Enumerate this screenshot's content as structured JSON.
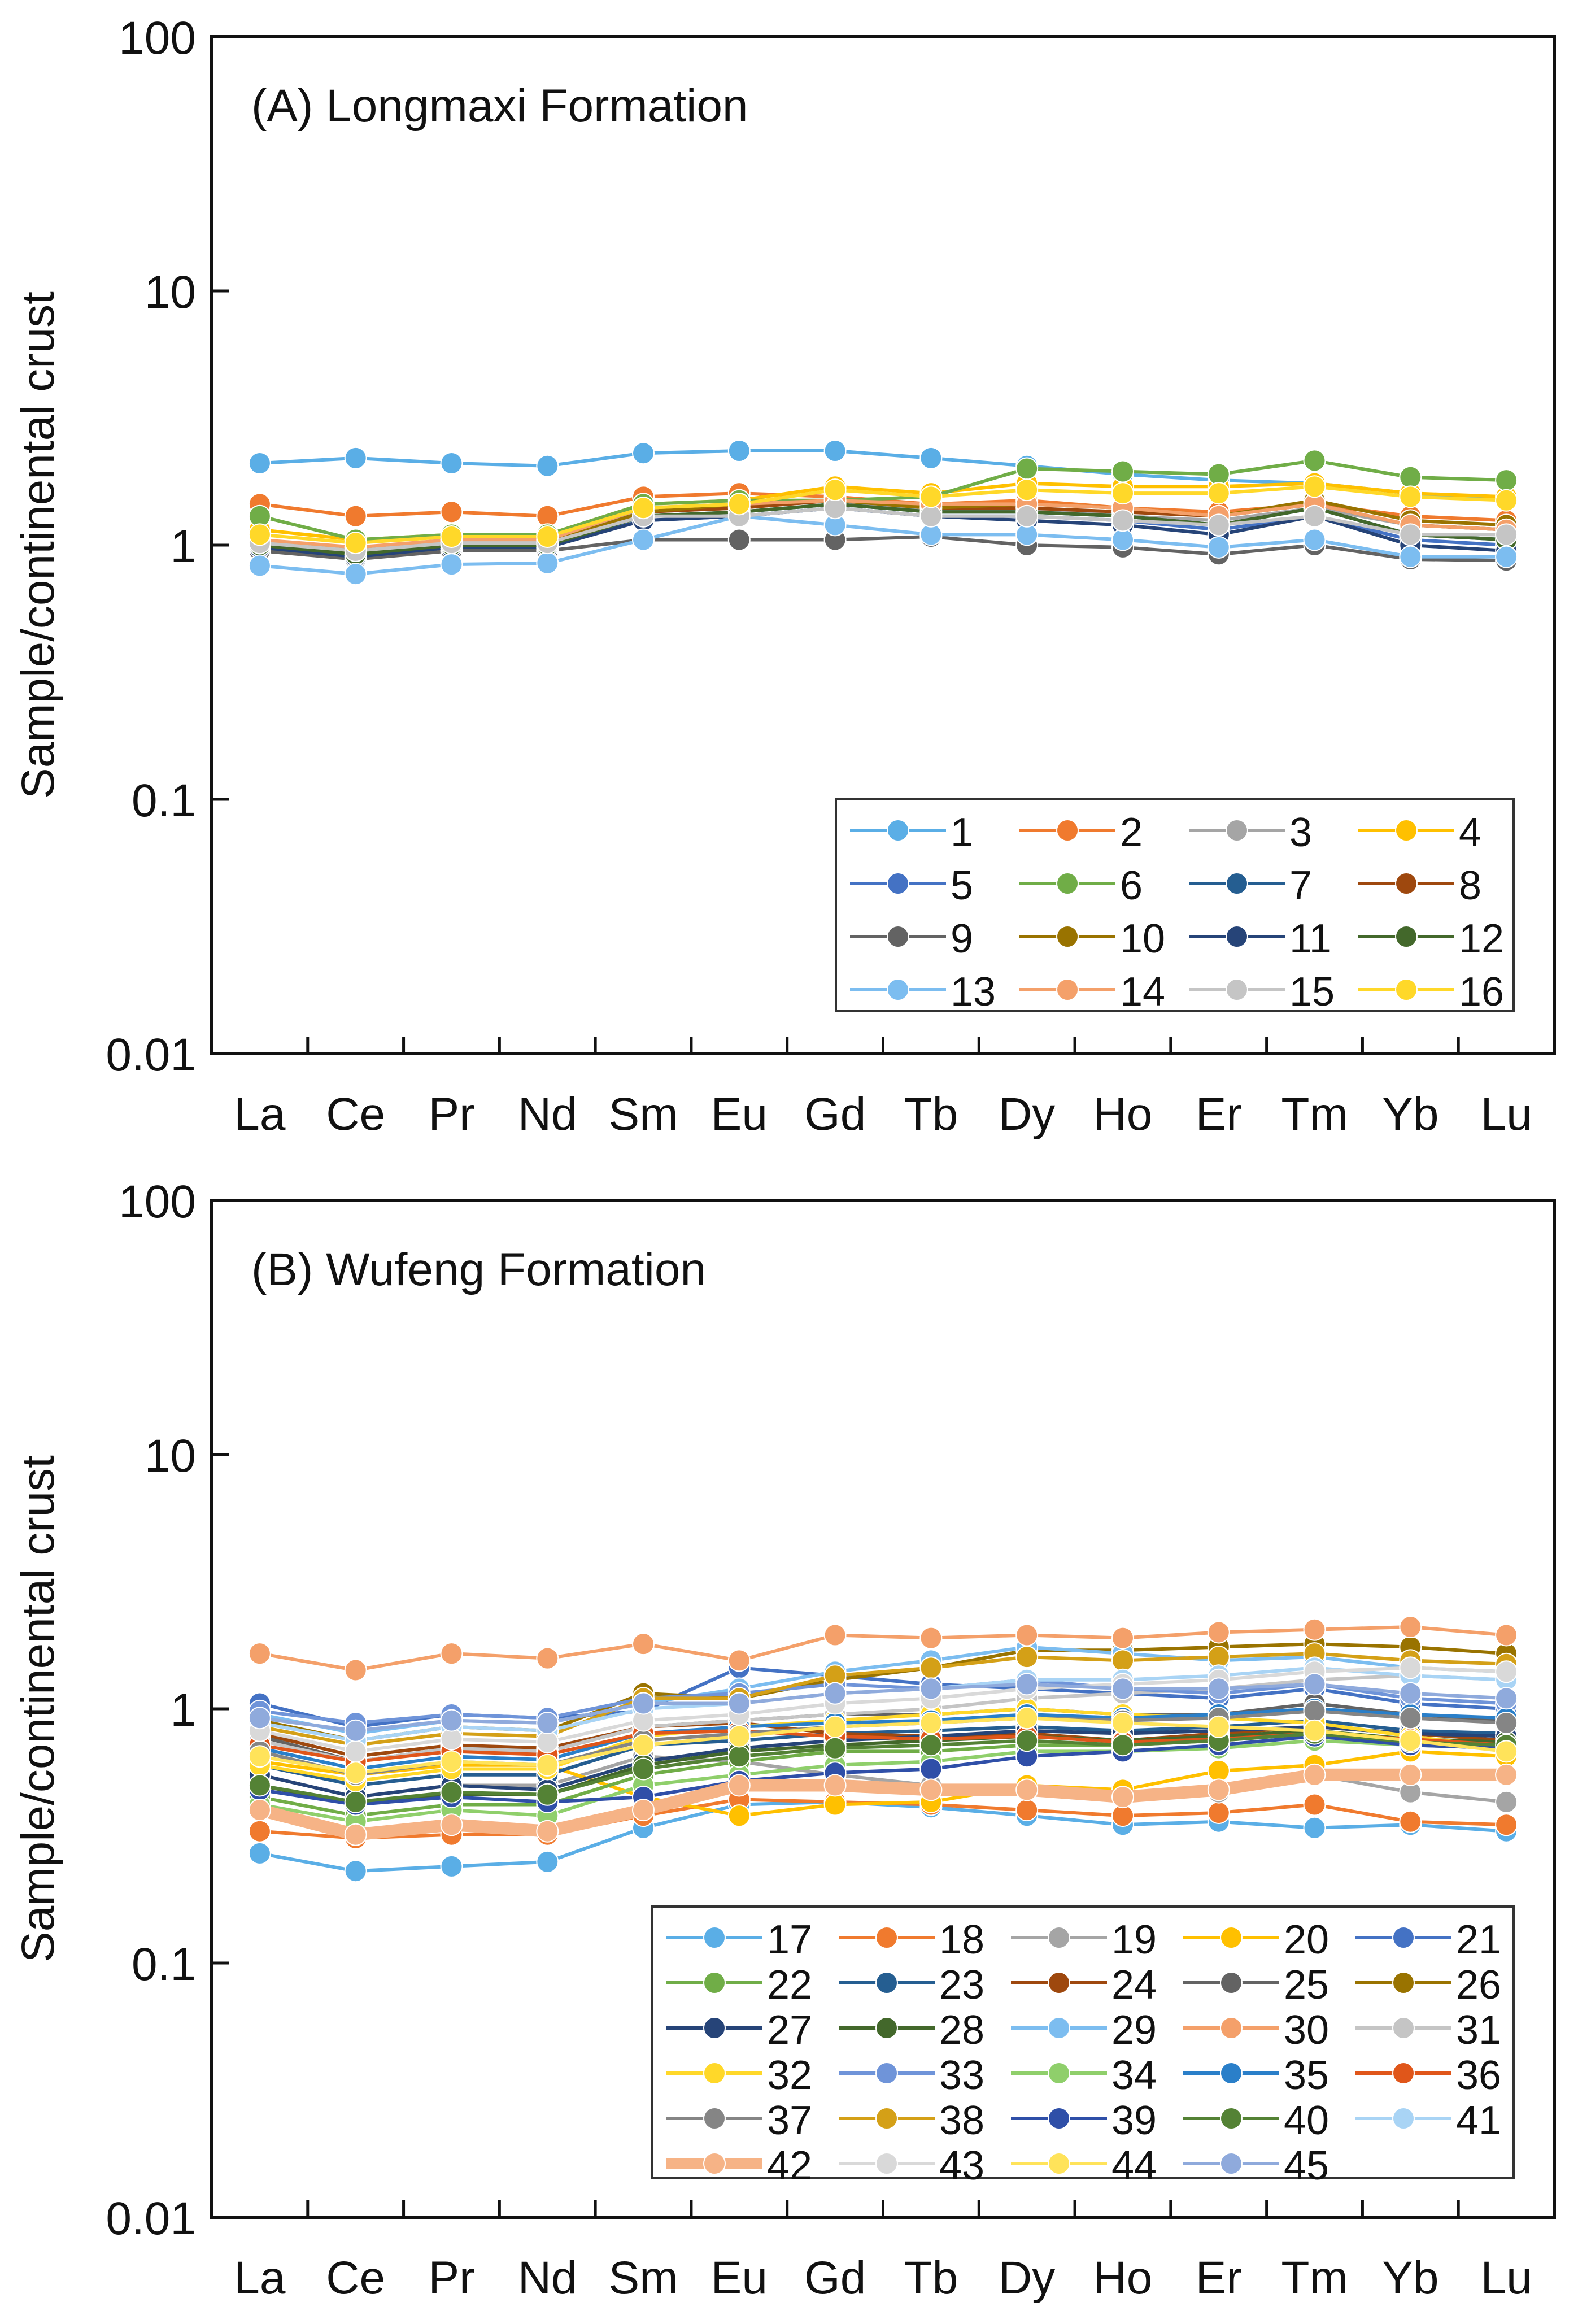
{
  "chart_data": [
    {
      "type": "line",
      "panel_title": "(A) Longmaxi Formation",
      "ylabel": "Sample/continental crust",
      "yscale": "log",
      "ylim": [
        0.01,
        100
      ],
      "yticks": [
        "100",
        "10",
        "1",
        "0.1",
        "0.01"
      ],
      "categories": [
        "La",
        "Ce",
        "Pr",
        "Nd",
        "Sm",
        "Eu",
        "Gd",
        "Tb",
        "Dy",
        "Ho",
        "Er",
        "Tm",
        "Yb",
        "Lu"
      ],
      "legend_position": "bottom-right",
      "series": [
        {
          "name": "1",
          "color": "#5aaee6",
          "values": [
            2.1,
            2.2,
            2.1,
            2.05,
            2.3,
            2.35,
            2.35,
            2.2,
            2.05,
            1.9,
            1.8,
            1.75,
            1.6,
            1.5
          ]
        },
        {
          "name": "2",
          "color": "#f07a2e",
          "values": [
            1.45,
            1.3,
            1.35,
            1.3,
            1.55,
            1.6,
            1.55,
            1.45,
            1.5,
            1.4,
            1.35,
            1.45,
            1.3,
            1.25
          ]
        },
        {
          "name": "3",
          "color": "#a5a5a5",
          "values": [
            1.05,
            0.95,
            1.05,
            1.05,
            1.35,
            1.4,
            1.5,
            1.35,
            1.4,
            1.3,
            1.25,
            1.4,
            1.2,
            1.15
          ]
        },
        {
          "name": "4",
          "color": "#ffc000",
          "values": [
            1.15,
            1.05,
            1.1,
            1.1,
            1.45,
            1.5,
            1.7,
            1.6,
            1.75,
            1.7,
            1.7,
            1.75,
            1.6,
            1.55
          ]
        },
        {
          "name": "5",
          "color": "#4472c4",
          "values": [
            0.95,
            0.9,
            1.0,
            1.0,
            1.25,
            1.3,
            1.4,
            1.3,
            1.3,
            1.25,
            1.15,
            1.3,
            1.05,
            1.0
          ]
        },
        {
          "name": "6",
          "color": "#70ad47",
          "values": [
            1.3,
            1.05,
            1.1,
            1.1,
            1.45,
            1.5,
            1.5,
            1.55,
            2.0,
            1.95,
            1.9,
            2.15,
            1.85,
            1.8
          ]
        },
        {
          "name": "7",
          "color": "#255e91",
          "values": [
            1.0,
            0.92,
            1.0,
            1.0,
            1.3,
            1.35,
            1.45,
            1.35,
            1.35,
            1.3,
            1.2,
            1.4,
            1.1,
            1.05
          ]
        },
        {
          "name": "8",
          "color": "#9e480e",
          "values": [
            1.0,
            0.95,
            1.02,
            1.02,
            1.35,
            1.4,
            1.5,
            1.4,
            1.4,
            1.35,
            1.3,
            1.45,
            1.2,
            1.15
          ]
        },
        {
          "name": "9",
          "color": "#636363",
          "values": [
            0.95,
            0.88,
            0.95,
            0.95,
            1.05,
            1.05,
            1.05,
            1.08,
            1.0,
            0.98,
            0.92,
            1.0,
            0.88,
            0.87
          ]
        },
        {
          "name": "10",
          "color": "#997300",
          "values": [
            1.02,
            0.95,
            1.02,
            1.02,
            1.35,
            1.45,
            1.5,
            1.4,
            1.45,
            1.4,
            1.3,
            1.5,
            1.25,
            1.2
          ]
        },
        {
          "name": "11",
          "color": "#264478",
          "values": [
            0.98,
            0.9,
            0.98,
            0.98,
            1.25,
            1.3,
            1.4,
            1.3,
            1.25,
            1.2,
            1.1,
            1.3,
            1.0,
            0.95
          ]
        },
        {
          "name": "12",
          "color": "#43682b",
          "values": [
            1.0,
            0.92,
            1.0,
            1.0,
            1.3,
            1.35,
            1.45,
            1.35,
            1.35,
            1.3,
            1.2,
            1.4,
            1.1,
            1.05
          ]
        },
        {
          "name": "13",
          "color": "#7cbdf0",
          "values": [
            0.83,
            0.77,
            0.84,
            0.85,
            1.05,
            1.3,
            1.2,
            1.1,
            1.1,
            1.05,
            0.98,
            1.05,
            0.9,
            0.9
          ]
        },
        {
          "name": "14",
          "color": "#f4a06a",
          "values": [
            1.05,
            0.98,
            1.05,
            1.05,
            1.4,
            1.45,
            1.5,
            1.45,
            1.45,
            1.4,
            1.3,
            1.45,
            1.2,
            1.15
          ]
        },
        {
          "name": "15",
          "color": "#c5c5c5",
          "values": [
            1.02,
            0.95,
            1.02,
            1.02,
            1.3,
            1.3,
            1.4,
            1.3,
            1.3,
            1.25,
            1.2,
            1.3,
            1.1,
            1.1
          ]
        },
        {
          "name": "16",
          "color": "#ffd829",
          "values": [
            1.1,
            1.02,
            1.08,
            1.08,
            1.4,
            1.45,
            1.65,
            1.55,
            1.65,
            1.6,
            1.6,
            1.7,
            1.55,
            1.5
          ]
        }
      ]
    },
    {
      "type": "line",
      "panel_title": "(B) Wufeng Formation",
      "ylabel": "Sample/continental crust",
      "yscale": "log",
      "ylim": [
        0.01,
        100
      ],
      "yticks": [
        "100",
        "10",
        "1",
        "0.1",
        "0.01"
      ],
      "categories": [
        "La",
        "Ce",
        "Pr",
        "Nd",
        "Sm",
        "Eu",
        "Gd",
        "Tb",
        "Dy",
        "Ho",
        "Er",
        "Tm",
        "Yb",
        "Lu"
      ],
      "legend_position": "bottom-right",
      "series": [
        {
          "name": "17",
          "color": "#5aaee6",
          "values": [
            0.27,
            0.23,
            0.24,
            0.25,
            0.34,
            0.42,
            0.43,
            0.41,
            0.38,
            0.35,
            0.36,
            0.34,
            0.35,
            0.33
          ]
        },
        {
          "name": "18",
          "color": "#f07a2e",
          "values": [
            0.33,
            0.31,
            0.32,
            0.32,
            0.38,
            0.44,
            0.43,
            0.42,
            0.4,
            0.38,
            0.39,
            0.42,
            0.36,
            0.35
          ]
        },
        {
          "name": "19",
          "color": "#a5a5a5",
          "values": [
            0.55,
            0.45,
            0.5,
            0.5,
            0.65,
            0.62,
            0.55,
            0.5,
            0.5,
            0.47,
            0.47,
            0.55,
            0.47,
            0.43
          ]
        },
        {
          "name": "20",
          "color": "#ffc000",
          "values": [
            0.62,
            0.55,
            0.6,
            0.6,
            0.45,
            0.38,
            0.42,
            0.43,
            0.5,
            0.48,
            0.57,
            0.6,
            0.68,
            0.65
          ]
        },
        {
          "name": "21",
          "color": "#4472c4",
          "values": [
            1.05,
            0.85,
            0.95,
            0.92,
            0.98,
            1.45,
            1.35,
            1.25,
            1.2,
            1.15,
            1.1,
            1.2,
            1.05,
            1.0
          ]
        },
        {
          "name": "22",
          "color": "#70ad47",
          "values": [
            0.45,
            0.38,
            0.42,
            0.42,
            0.55,
            0.62,
            0.68,
            0.68,
            0.72,
            0.72,
            0.75,
            0.8,
            0.75,
            0.72
          ]
        },
        {
          "name": "23",
          "color": "#255e91",
          "values": [
            0.6,
            0.5,
            0.55,
            0.55,
            0.72,
            0.75,
            0.8,
            0.82,
            0.85,
            0.82,
            0.85,
            0.9,
            0.82,
            0.8
          ]
        },
        {
          "name": "24",
          "color": "#9e480e",
          "values": [
            0.8,
            0.65,
            0.72,
            0.7,
            0.85,
            0.88,
            0.8,
            0.78,
            0.8,
            0.75,
            0.8,
            0.85,
            0.8,
            0.75
          ]
        },
        {
          "name": "25",
          "color": "#636363",
          "values": [
            0.78,
            0.62,
            0.7,
            0.68,
            0.85,
            0.9,
            0.95,
            0.95,
            1.0,
            0.95,
            0.95,
            1.05,
            0.95,
            0.9
          ]
        },
        {
          "name": "26",
          "color": "#997300",
          "values": [
            0.9,
            0.75,
            0.85,
            0.82,
            1.15,
            1.1,
            1.3,
            1.45,
            1.7,
            1.7,
            1.75,
            1.8,
            1.75,
            1.65
          ]
        },
        {
          "name": "27",
          "color": "#264478",
          "values": [
            0.55,
            0.45,
            0.5,
            0.48,
            0.62,
            0.7,
            0.75,
            0.78,
            0.82,
            0.8,
            0.82,
            0.85,
            0.8,
            0.78
          ]
        },
        {
          "name": "28",
          "color": "#43682b",
          "values": [
            0.5,
            0.42,
            0.46,
            0.46,
            0.6,
            0.68,
            0.72,
            0.75,
            0.78,
            0.75,
            0.78,
            0.82,
            0.76,
            0.74
          ]
        },
        {
          "name": "29",
          "color": "#7cbdf0",
          "values": [
            0.95,
            0.8,
            0.9,
            0.88,
            1.05,
            1.2,
            1.4,
            1.55,
            1.75,
            1.65,
            1.55,
            1.6,
            1.45,
            1.4
          ]
        },
        {
          "name": "30",
          "color": "#f4a06a",
          "values": [
            1.65,
            1.42,
            1.65,
            1.58,
            1.8,
            1.55,
            1.95,
            1.9,
            1.95,
            1.9,
            2.0,
            2.05,
            2.1,
            1.95
          ]
        },
        {
          "name": "31",
          "color": "#c5c5c5",
          "values": [
            0.75,
            0.62,
            0.7,
            0.68,
            0.85,
            0.9,
            0.95,
            1.0,
            1.1,
            1.15,
            1.2,
            1.3,
            1.35,
            1.3
          ]
        },
        {
          "name": "32",
          "color": "#ffd829",
          "values": [
            0.6,
            0.52,
            0.58,
            0.58,
            0.78,
            0.85,
            0.9,
            0.95,
            1.0,
            0.95,
            0.92,
            0.88,
            0.78,
            0.7
          ]
        },
        {
          "name": "33",
          "color": "#6f94d9",
          "values": [
            0.98,
            0.88,
            0.95,
            0.92,
            1.1,
            1.15,
            1.25,
            1.2,
            1.3,
            1.2,
            1.15,
            1.25,
            1.1,
            1.05
          ]
        },
        {
          "name": "34",
          "color": "#8fcf6b",
          "values": [
            0.42,
            0.36,
            0.4,
            0.38,
            0.5,
            0.55,
            0.6,
            0.62,
            0.68,
            0.68,
            0.7,
            0.75,
            0.72,
            0.7
          ]
        },
        {
          "name": "35",
          "color": "#2a7fc9",
          "values": [
            0.7,
            0.58,
            0.65,
            0.63,
            0.8,
            0.85,
            0.88,
            0.9,
            0.95,
            0.92,
            0.95,
            1.0,
            0.95,
            0.92
          ]
        },
        {
          "name": "36",
          "color": "#e0561a",
          "values": [
            0.72,
            0.62,
            0.68,
            0.66,
            0.8,
            0.82,
            0.78,
            0.76,
            0.78,
            0.74,
            0.76,
            0.8,
            0.76,
            0.72
          ]
        },
        {
          "name": "37",
          "color": "#858585",
          "values": [
            0.68,
            0.55,
            0.62,
            0.6,
            0.75,
            0.8,
            0.85,
            0.88,
            0.92,
            0.9,
            0.92,
            0.98,
            0.92,
            0.88
          ]
        },
        {
          "name": "38",
          "color": "#d4a017",
          "values": [
            0.85,
            0.72,
            0.8,
            0.78,
            1.1,
            1.1,
            1.35,
            1.45,
            1.6,
            1.55,
            1.6,
            1.65,
            1.55,
            1.5
          ]
        },
        {
          "name": "39",
          "color": "#2f4fa8",
          "values": [
            0.48,
            0.42,
            0.45,
            0.43,
            0.45,
            0.52,
            0.56,
            0.58,
            0.65,
            0.68,
            0.72,
            0.78,
            0.72,
            0.7
          ]
        },
        {
          "name": "40",
          "color": "#548235",
          "values": [
            0.5,
            0.43,
            0.47,
            0.46,
            0.58,
            0.65,
            0.7,
            0.72,
            0.75,
            0.72,
            0.75,
            0.8,
            0.74,
            0.72
          ]
        },
        {
          "name": "41",
          "color": "#a9d4f5",
          "values": [
            0.88,
            0.75,
            0.85,
            0.82,
            1.0,
            1.05,
            1.15,
            1.2,
            1.3,
            1.3,
            1.35,
            1.45,
            1.35,
            1.3
          ]
        },
        {
          "name": "42",
          "color": "#f6b386",
          "values": [
            0.4,
            0.32,
            0.35,
            0.33,
            0.4,
            0.5,
            0.5,
            0.48,
            0.48,
            0.45,
            0.48,
            0.55,
            0.55,
            0.55
          ]
        },
        {
          "name": "43",
          "color": "#d9d9d9",
          "values": [
            0.82,
            0.68,
            0.76,
            0.74,
            0.9,
            0.95,
            1.05,
            1.1,
            1.2,
            1.25,
            1.3,
            1.4,
            1.45,
            1.4
          ]
        },
        {
          "name": "44",
          "color": "#ffe35a",
          "values": [
            0.65,
            0.56,
            0.62,
            0.6,
            0.72,
            0.78,
            0.85,
            0.88,
            0.92,
            0.88,
            0.85,
            0.82,
            0.75,
            0.68
          ]
        },
        {
          "name": "45",
          "color": "#8faadc",
          "values": [
            0.92,
            0.82,
            0.9,
            0.88,
            1.05,
            1.05,
            1.15,
            1.2,
            1.25,
            1.2,
            1.2,
            1.25,
            1.15,
            1.1
          ]
        }
      ]
    }
  ]
}
